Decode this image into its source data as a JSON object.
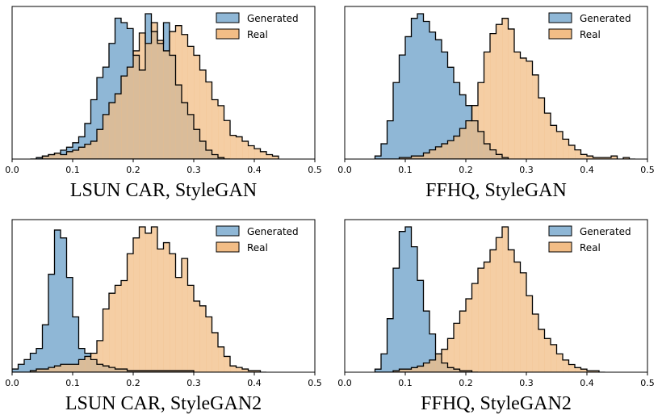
{
  "colors": {
    "generated": "#8fb7d6",
    "real": "#f2bd86",
    "overlap": "#9a8a72",
    "edge": "#000000"
  },
  "chart_data": [
    {
      "type": "histogram",
      "title": "LSUN CAR, StyleGAN",
      "xlim": [
        0.0,
        0.5
      ],
      "xticks": [
        "0.0",
        "0.1",
        "0.2",
        "0.3",
        "0.4",
        "0.5"
      ],
      "legend": {
        "placement": "top-right",
        "entries": [
          "Generated",
          "Real"
        ]
      },
      "bin_start": 0.03,
      "bin_width": 0.01,
      "series": [
        {
          "name": "Generated",
          "values": [
            0,
            1,
            2,
            3,
            4,
            6,
            8,
            11,
            15,
            24,
            40,
            55,
            62,
            78,
            95,
            92,
            88,
            70,
            60,
            98,
            86,
            78,
            92,
            70,
            50,
            38,
            30,
            20,
            12,
            6,
            3,
            1,
            0
          ]
        },
        {
          "name": "Real",
          "values": [
            0,
            0,
            2,
            3,
            4,
            3,
            5,
            6,
            8,
            10,
            12,
            20,
            30,
            38,
            44,
            56,
            62,
            73,
            85,
            78,
            92,
            80,
            73,
            86,
            90,
            84,
            76,
            70,
            60,
            52,
            40,
            36,
            26,
            16,
            15,
            12,
            9,
            7,
            5,
            3,
            2
          ]
        }
      ]
    },
    {
      "type": "histogram",
      "title": "FFHQ, StyleGAN",
      "xlim": [
        0.0,
        0.5
      ],
      "xticks": [
        "0.0",
        "0.1",
        "0.2",
        "0.3",
        "0.4",
        "0.5"
      ],
      "legend": {
        "placement": "top-right",
        "entries": [
          "Generated",
          "Real"
        ]
      },
      "bin_start": 0.05,
      "bin_width": 0.01,
      "series": [
        {
          "name": "Generated",
          "values": [
            2,
            10,
            25,
            50,
            68,
            80,
            92,
            95,
            90,
            83,
            78,
            70,
            60,
            50,
            42,
            35,
            25,
            18,
            10,
            6,
            3,
            1
          ]
        },
        {
          "name": "Real",
          "values": [
            0,
            0,
            0,
            0,
            1,
            1,
            2,
            2,
            4,
            6,
            8,
            10,
            12,
            15,
            20,
            25,
            35,
            50,
            70,
            82,
            88,
            92,
            85,
            70,
            66,
            64,
            55,
            40,
            30,
            22,
            18,
            13,
            9,
            6,
            3,
            2,
            1,
            1,
            1,
            2,
            0,
            1,
            0
          ]
        }
      ]
    },
    {
      "type": "histogram",
      "title": "LSUN CAR, StyleGAN2",
      "xlim": [
        0.0,
        0.5
      ],
      "xticks": [
        "0.0",
        "0.1",
        "0.2",
        "0.3",
        "0.4",
        "0.5"
      ],
      "legend": {
        "placement": "top-right",
        "entries": [
          "Generated",
          "Real"
        ]
      },
      "bin_start": 0.0,
      "bin_width": 0.01,
      "series": [
        {
          "name": "Generated",
          "values": [
            2,
            5,
            8,
            12,
            15,
            30,
            62,
            90,
            85,
            60,
            35,
            15,
            12,
            8,
            5,
            4,
            3,
            2,
            2,
            1,
            1,
            1,
            1,
            1,
            1,
            1,
            1,
            1,
            1,
            1
          ]
        },
        {
          "name": "Real",
          "values": [
            0,
            0,
            0,
            1,
            2,
            2,
            3,
            4,
            5,
            5,
            5,
            8,
            10,
            12,
            20,
            40,
            50,
            55,
            58,
            75,
            85,
            92,
            88,
            92,
            78,
            82,
            75,
            60,
            72,
            55,
            45,
            42,
            35,
            25,
            16,
            10,
            4,
            3,
            2,
            1,
            1,
            0
          ]
        }
      ]
    },
    {
      "type": "histogram",
      "title": "FFHQ, StyleGAN2",
      "xlim": [
        0.0,
        0.5
      ],
      "xticks": [
        "0.0",
        "0.1",
        "0.2",
        "0.3",
        "0.4",
        "0.5"
      ],
      "legend": {
        "placement": "top-right",
        "entries": [
          "Generated",
          "Real"
        ]
      },
      "bin_start": 0.05,
      "bin_width": 0.01,
      "series": [
        {
          "name": "Generated",
          "values": [
            2,
            12,
            35,
            68,
            92,
            95,
            82,
            60,
            40,
            25,
            12,
            6,
            3,
            2,
            1,
            1,
            0
          ]
        },
        {
          "name": "Real",
          "values": [
            0,
            0,
            0,
            1,
            2,
            2,
            3,
            4,
            6,
            8,
            12,
            15,
            22,
            32,
            40,
            48,
            58,
            68,
            72,
            80,
            88,
            95,
            80,
            72,
            65,
            50,
            38,
            28,
            22,
            18,
            12,
            8,
            5,
            3,
            2,
            1,
            1,
            0
          ]
        }
      ]
    }
  ]
}
